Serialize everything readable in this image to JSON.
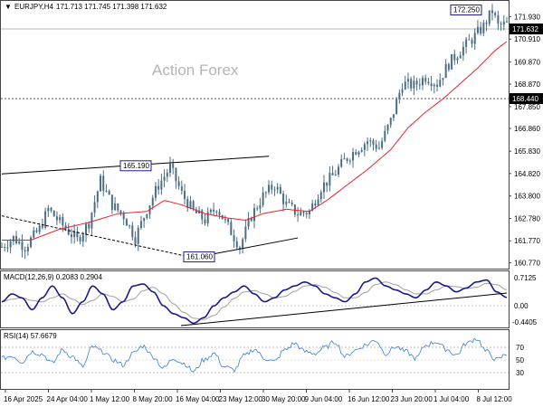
{
  "header": {
    "symbol": "EURJPY,H4",
    "ohlc": "171.713 171.745 171.398 171.632"
  },
  "watermark": "Action Forex",
  "macd": {
    "label": "MACD(12,26,9) 0.2083 0.2904",
    "ticks": [
      "0.7125",
      "0.00",
      "-0.4405"
    ]
  },
  "rsi": {
    "label": "RSI(14) 57.6679",
    "ticks": [
      "70",
      "50",
      "30"
    ]
  },
  "colors": {
    "candle": "#4a6e86",
    "ma": "#e8242a",
    "macd_line": "#1a1a8c",
    "signal_line": "#a0a0a0",
    "rsi_line": "#3a7fd6",
    "current_price_box": "#000000",
    "label_box_border": "#1a1a8c"
  },
  "chart_data": {
    "type": "candlestick",
    "price_axis_ticks": [
      "171.930",
      "170.910",
      "169.870",
      "168.870",
      "167.850",
      "166.860",
      "165.830",
      "164.820",
      "163.800",
      "162.780",
      "161.770",
      "160.770"
    ],
    "time_axis_labels": [
      "16 Apr 2025",
      "24 Apr 04:00",
      "1 May 12:00",
      "8 May 20:00",
      "16 May 04:00",
      "23 May 12:00",
      "30 May 20:00",
      "9 Jun 04:00",
      "16 Jun 12:00",
      "23 Jun 20:00",
      "1 Jul 04:00",
      "8 Jul 12:00"
    ],
    "current_price": "171.632",
    "horizontal_level": "168.440",
    "annotations": [
      {
        "text": "172.250",
        "value": 172.25
      },
      {
        "text": "165.190",
        "value": 165.19
      },
      {
        "text": "161.060",
        "value": 161.06
      }
    ],
    "close_path": [
      [
        0,
        161.5
      ],
      [
        4,
        161.9
      ],
      [
        8,
        161.5
      ],
      [
        13,
        162.3
      ],
      [
        16,
        163.2
      ],
      [
        20,
        162.6
      ],
      [
        26,
        161.8
      ],
      [
        30,
        162.6
      ],
      [
        34,
        164.5
      ],
      [
        38,
        163.4
      ],
      [
        42,
        162.9
      ],
      [
        46,
        161.9
      ],
      [
        50,
        163.2
      ],
      [
        54,
        164.3
      ],
      [
        58,
        165.1
      ],
      [
        62,
        163.9
      ],
      [
        66,
        163.1
      ],
      [
        70,
        162.7
      ],
      [
        74,
        163.3
      ],
      [
        78,
        162.4
      ],
      [
        82,
        161.5
      ],
      [
        86,
        162.9
      ],
      [
        90,
        163.8
      ],
      [
        94,
        164.3
      ],
      [
        98,
        163.4
      ],
      [
        102,
        163.0
      ],
      [
        106,
        163.1
      ],
      [
        110,
        164.2
      ],
      [
        114,
        164.7
      ],
      [
        118,
        165.4
      ],
      [
        122,
        165.9
      ],
      [
        126,
        166.3
      ],
      [
        130,
        166.0
      ],
      [
        134,
        167.2
      ],
      [
        138,
        168.9
      ],
      [
        142,
        168.8
      ],
      [
        146,
        169.2
      ],
      [
        150,
        168.9
      ],
      [
        154,
        169.8
      ],
      [
        158,
        170.4
      ],
      [
        162,
        170.9
      ],
      [
        166,
        171.5
      ],
      [
        169,
        172.2
      ],
      [
        171,
        171.5
      ],
      [
        174,
        171.6
      ]
    ],
    "ma_path": [
      [
        0,
        161.8
      ],
      [
        10,
        161.8
      ],
      [
        20,
        162.3
      ],
      [
        30,
        162.6
      ],
      [
        40,
        163.0
      ],
      [
        50,
        163.1
      ],
      [
        56,
        163.6
      ],
      [
        62,
        163.4
      ],
      [
        70,
        163.0
      ],
      [
        78,
        162.8
      ],
      [
        84,
        162.7
      ],
      [
        90,
        163.0
      ],
      [
        98,
        163.2
      ],
      [
        106,
        163.1
      ],
      [
        112,
        163.6
      ],
      [
        118,
        164.2
      ],
      [
        126,
        165.0
      ],
      [
        134,
        165.9
      ],
      [
        140,
        166.9
      ],
      [
        146,
        167.6
      ],
      [
        152,
        168.2
      ],
      [
        158,
        168.9
      ],
      [
        164,
        169.6
      ],
      [
        170,
        170.4
      ],
      [
        174,
        170.8
      ]
    ],
    "trendlines": [
      {
        "from": [
          0,
          164.8
        ],
        "to": [
          92,
          165.6
        ]
      },
      {
        "from": [
          0,
          162.9
        ],
        "to": [
          66,
          161.0
        ]
      },
      {
        "from": [
          66,
          161.0
        ],
        "to": [
          102,
          161.9
        ]
      }
    ],
    "macd_series": {
      "range": [
        -0.4405,
        0.7125
      ],
      "values": [
        0.1,
        0.3,
        0.2,
        -0.1,
        0.2,
        0.5,
        0.2,
        -0.2,
        0.1,
        0.5,
        0.3,
        -0.1,
        0.1,
        0.5,
        0.55,
        0.35,
        0.0,
        -0.2,
        -0.3,
        -0.44,
        -0.3,
        0.0,
        0.2,
        0.35,
        0.5,
        0.3,
        0.1,
        0.2,
        0.4,
        0.5,
        0.6,
        0.5,
        0.3,
        0.2,
        0.1,
        0.3,
        0.6,
        0.7,
        0.5,
        0.4,
        0.3,
        0.2,
        0.4,
        0.6,
        0.5,
        0.35,
        0.45,
        0.6,
        0.65,
        0.35,
        0.21
      ]
    },
    "rsi_series": {
      "range": [
        15,
        85
      ],
      "values": [
        52,
        55,
        48,
        60,
        57,
        46,
        62,
        54,
        42,
        66,
        60,
        50,
        44,
        58,
        67,
        54,
        40,
        52,
        46,
        36,
        50,
        58,
        42,
        38,
        55,
        63,
        52,
        48,
        62,
        70,
        60,
        58,
        65,
        72,
        54,
        62,
        68,
        74,
        58,
        66,
        60,
        52,
        68,
        72,
        63,
        56,
        70,
        76,
        60,
        50,
        57
      ]
    }
  }
}
